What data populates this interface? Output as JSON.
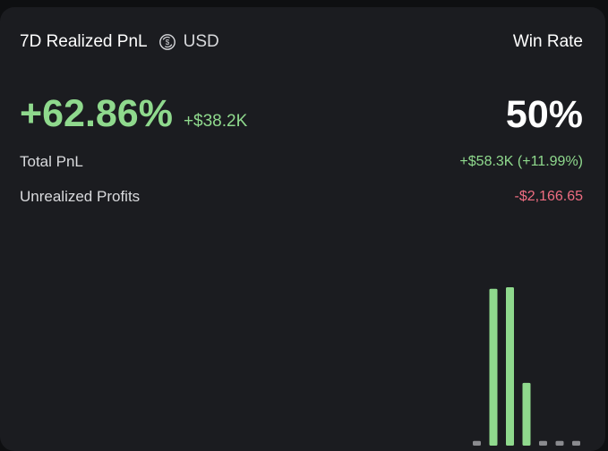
{
  "header": {
    "title": "7D Realized PnL",
    "currency_icon": "circle-dollar-icon",
    "currency": "USD",
    "win_rate_label": "Win Rate"
  },
  "summary": {
    "realized_percent": "+62.86%",
    "realized_amount": "+$38.2K",
    "win_rate": "50%"
  },
  "metrics": {
    "total_pnl_label": "Total PnL",
    "total_pnl_value": "+$58.3K (+11.99%)",
    "unrealized_label": "Unrealized Profits",
    "unrealized_value": "-$2,166.65"
  },
  "colors": {
    "background": "#1b1c20",
    "positive": "#8fd98d",
    "negative": "#ef6d81",
    "neutral_bar": "#8a8b8f"
  },
  "chart_data": {
    "type": "bar",
    "categories": [
      "",
      "",
      "",
      "",
      "",
      "",
      ""
    ],
    "values": [
      0.03,
      1.0,
      1.01,
      0.4,
      0.03,
      0.03,
      0.03
    ],
    "bar_states": [
      "neutral",
      "positive",
      "positive",
      "positive",
      "neutral",
      "neutral",
      "neutral"
    ],
    "grid": false,
    "legend": "none"
  }
}
